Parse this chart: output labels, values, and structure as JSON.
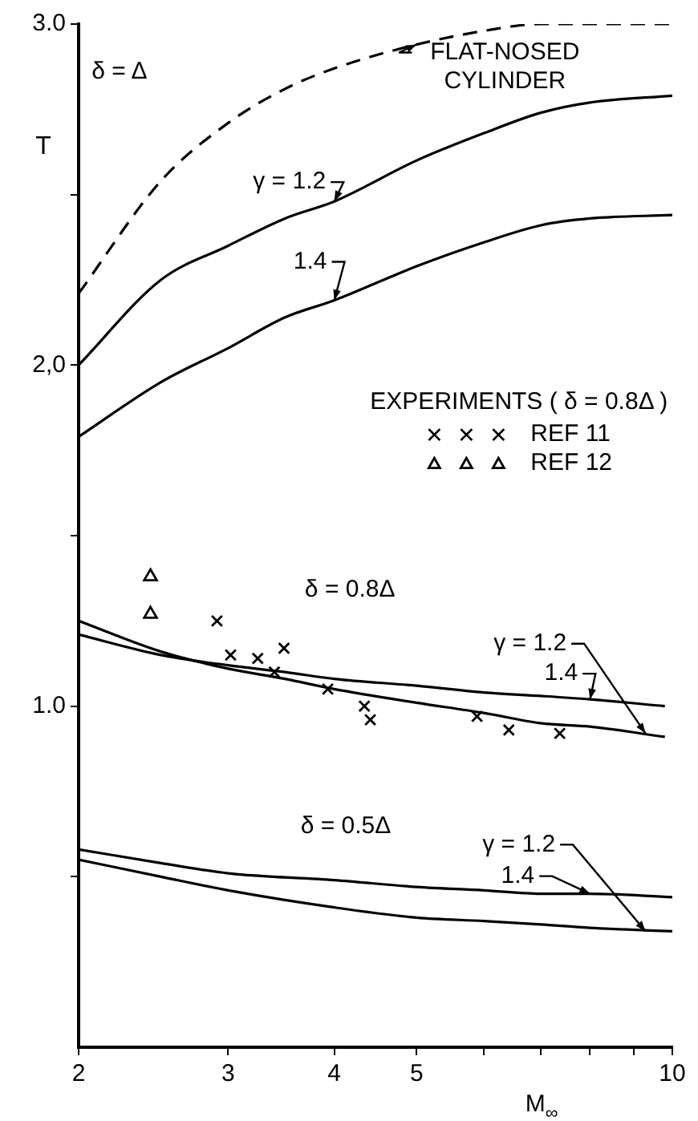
{
  "chart_data": {
    "type": "line",
    "xlabel": "M$_{∞}$",
    "ylabel": "T",
    "log": "x",
    "xlim": [
      2,
      10
    ],
    "ylim": [
      0,
      3
    ],
    "xticks": [
      2,
      3,
      4,
      5,
      {
        "value": 6,
        "label": null
      },
      {
        "value": 7,
        "label": null
      },
      {
        "value": 8,
        "label": null
      },
      {
        "value": 9,
        "label": null
      },
      10
    ],
    "yticks": [
      {
        "value": 0.5,
        "label": null
      },
      {
        "value": 1,
        "label": "1.0"
      },
      {
        "value": 1.5,
        "label": null
      },
      {
        "value": 2,
        "label": "2,0"
      },
      {
        "value": 2.5,
        "label": null
      },
      {
        "value": 3,
        "label": "3.0"
      }
    ],
    "grid": false,
    "legend": "right",
    "legend_title": "EXPERIMENTS ( δ = 0.8Δ )",
    "marker": "none",
    "series": [
      {
        "type": "line",
        "color": "#000000",
        "line_style": "dashed",
        "x": [
          2,
          2.5,
          3,
          3.5,
          4,
          5,
          6,
          7,
          8,
          10
        ],
        "values": [
          2.21,
          2.54,
          2.71,
          2.81,
          2.87,
          2.94,
          2.98,
          3.0,
          3.0,
          3.0
        ]
      },
      {
        "type": "line",
        "color": "#000000",
        "line_style": "solid",
        "x": [
          2,
          2.5,
          3,
          3.5,
          4,
          5,
          6,
          7,
          8,
          10
        ],
        "values": [
          2.0,
          2.25,
          2.35,
          2.43,
          2.48,
          2.6,
          2.68,
          2.74,
          2.77,
          2.79
        ]
      },
      {
        "type": "line",
        "color": "#000000",
        "line_style": "solid",
        "x": [
          2,
          2.5,
          3,
          3.5,
          4,
          5,
          6,
          7,
          8,
          10
        ],
        "values": [
          1.79,
          1.95,
          2.05,
          2.14,
          2.19,
          2.29,
          2.36,
          2.41,
          2.43,
          2.44
        ]
      },
      {
        "type": "line",
        "color": "#000000",
        "line_style": "solid",
        "x": [
          2,
          2.5,
          3,
          3.5,
          4,
          5,
          6,
          7,
          8,
          9.8
        ],
        "values": [
          1.21,
          1.15,
          1.12,
          1.1,
          1.08,
          1.06,
          1.04,
          1.03,
          1.02,
          1.0
        ]
      },
      {
        "type": "line",
        "color": "#000000",
        "line_style": "solid",
        "x": [
          2,
          2.5,
          3,
          3.5,
          4,
          5,
          6,
          7,
          8,
          9.8
        ],
        "values": [
          1.25,
          1.16,
          1.11,
          1.08,
          1.05,
          1.01,
          0.98,
          0.95,
          0.94,
          0.91
        ]
      },
      {
        "type": "line",
        "color": "#000000",
        "line_style": "solid",
        "x": [
          2,
          2.5,
          3,
          4,
          5,
          6,
          7,
          8,
          10
        ],
        "values": [
          0.58,
          0.54,
          0.51,
          0.49,
          0.47,
          0.46,
          0.45,
          0.45,
          0.44
        ]
      },
      {
        "type": "line",
        "color": "#000000",
        "line_style": "solid",
        "x": [
          2,
          2.5,
          3,
          4,
          5,
          6,
          7,
          8,
          10
        ],
        "values": [
          0.55,
          0.5,
          0.46,
          0.41,
          0.38,
          0.37,
          0.36,
          0.35,
          0.34
        ]
      },
      {
        "type": "scatter",
        "name": "REF 11",
        "color": "#000000",
        "marker": "cross",
        "x": [
          2.91,
          3.02,
          3.25,
          3.49,
          3.4,
          3.93,
          4.34,
          4.41,
          5.89,
          6.42,
          7.37
        ],
        "values": [
          1.25,
          1.15,
          1.14,
          1.17,
          1.1,
          1.05,
          1.0,
          0.96,
          0.97,
          0.93,
          0.92
        ]
      },
      {
        "type": "scatter",
        "name": "REF 12",
        "color": "#000000",
        "marker": "triangle",
        "x": [
          2.43,
          2.43
        ],
        "values": [
          1.38,
          1.27
        ]
      }
    ],
    "annotations": [
      "δ = Δ",
      {
        "text": "FLAT-NOSED CYLINDER",
        "x": 5,
        "y": 2.94
      },
      {
        "text": "γ = 1.2",
        "x": 4,
        "y": 2.48
      },
      {
        "text": "1.4",
        "x": 4,
        "y": 2.19
      },
      "δ = 0.8Δ",
      {
        "text": "γ = 1.2",
        "x": 9.3,
        "y": 0.92
      },
      {
        "text": "1.4",
        "x": 8,
        "y": 1.02
      },
      "δ = 0.5Δ",
      {
        "text": "γ = 1.2",
        "x": 9.3,
        "y": 0.34
      },
      {
        "text": "1.4",
        "x": 8,
        "y": 0.45
      }
    ]
  }
}
